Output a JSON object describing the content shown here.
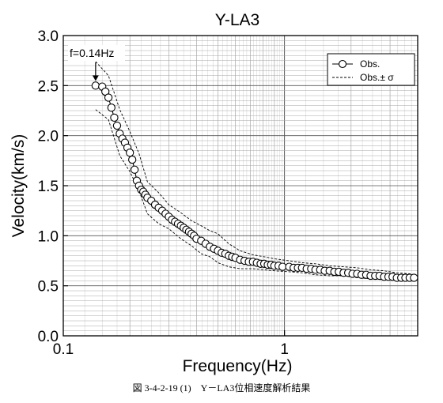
{
  "chart_data": {
    "type": "scatter",
    "title": "Y-LA3",
    "xlabel": "Frequency(Hz)",
    "ylabel": "Velocity(km/s)",
    "xscale": "log",
    "xlim": [
      0.1,
      4
    ],
    "ylim": [
      0.0,
      3.0
    ],
    "x_ticks": [
      "0.1",
      "1"
    ],
    "y_ticks": [
      "0.0",
      "0.5",
      "1.0",
      "1.5",
      "2.0",
      "2.5",
      "3.0"
    ],
    "grid": true,
    "legend_position": "top-right",
    "annotation": "f=0.14Hz",
    "annotation_x": 0.14,
    "annotation_y": 2.5,
    "series": [
      {
        "name": "Obs.",
        "style": "line-with-open-circles",
        "x": [
          0.14,
          0.15,
          0.155,
          0.16,
          0.165,
          0.17,
          0.175,
          0.18,
          0.185,
          0.19,
          0.195,
          0.2,
          0.205,
          0.21,
          0.215,
          0.22,
          0.225,
          0.23,
          0.235,
          0.24,
          0.25,
          0.26,
          0.27,
          0.28,
          0.29,
          0.3,
          0.31,
          0.32,
          0.33,
          0.34,
          0.35,
          0.36,
          0.37,
          0.38,
          0.39,
          0.4,
          0.42,
          0.44,
          0.46,
          0.48,
          0.5,
          0.52,
          0.54,
          0.56,
          0.58,
          0.6,
          0.63,
          0.66,
          0.69,
          0.72,
          0.75,
          0.78,
          0.81,
          0.84,
          0.87,
          0.9,
          0.94,
          0.98,
          1.05,
          1.1,
          1.15,
          1.2,
          1.26,
          1.32,
          1.38,
          1.45,
          1.52,
          1.6,
          1.68,
          1.76,
          1.85,
          1.94,
          2.03,
          2.13,
          2.23,
          2.34,
          2.45,
          2.57,
          2.69,
          2.82,
          2.95,
          3.08,
          3.22,
          3.37,
          3.52,
          3.68,
          3.85
        ],
        "values": [
          2.5,
          2.49,
          2.44,
          2.38,
          2.28,
          2.18,
          2.1,
          2.02,
          1.97,
          1.93,
          1.88,
          1.83,
          1.76,
          1.66,
          1.55,
          1.5,
          1.46,
          1.44,
          1.41,
          1.38,
          1.35,
          1.31,
          1.28,
          1.25,
          1.22,
          1.19,
          1.16,
          1.14,
          1.12,
          1.1,
          1.08,
          1.06,
          1.04,
          1.02,
          1.0,
          0.97,
          0.95,
          0.92,
          0.89,
          0.87,
          0.85,
          0.83,
          0.82,
          0.8,
          0.79,
          0.78,
          0.76,
          0.75,
          0.74,
          0.74,
          0.73,
          0.72,
          0.72,
          0.71,
          0.71,
          0.7,
          0.7,
          0.69,
          0.69,
          0.68,
          0.68,
          0.68,
          0.67,
          0.67,
          0.66,
          0.66,
          0.65,
          0.65,
          0.64,
          0.64,
          0.63,
          0.63,
          0.62,
          0.62,
          0.61,
          0.61,
          0.6,
          0.6,
          0.6,
          0.59,
          0.59,
          0.59,
          0.58,
          0.58,
          0.58,
          0.58,
          0.58
        ]
      },
      {
        "name": "Obs.± σ",
        "style": "dashed",
        "x": [
          0.14,
          0.16,
          0.18,
          0.2,
          0.22,
          0.24,
          0.27,
          0.3,
          0.34,
          0.38,
          0.42,
          0.46,
          0.5,
          0.56,
          0.63,
          0.72,
          0.81,
          0.9,
          1.05,
          1.2,
          1.38,
          1.6,
          1.85,
          2.13,
          2.45,
          2.82,
          3.22,
          3.68,
          3.85
        ],
        "upper": [
          2.74,
          2.6,
          2.26,
          2.04,
          1.82,
          1.54,
          1.43,
          1.31,
          1.23,
          1.15,
          1.1,
          1.05,
          1.02,
          0.92,
          0.85,
          0.81,
          0.79,
          0.77,
          0.75,
          0.73,
          0.72,
          0.7,
          0.69,
          0.68,
          0.66,
          0.65,
          0.63,
          0.62,
          0.61
        ],
        "lower": [
          2.26,
          2.16,
          1.8,
          1.64,
          1.45,
          1.22,
          1.12,
          1.07,
          0.97,
          0.9,
          0.82,
          0.79,
          0.73,
          0.69,
          0.67,
          0.67,
          0.66,
          0.65,
          0.64,
          0.63,
          0.61,
          0.6,
          0.6,
          0.58,
          0.57,
          0.56,
          0.55,
          0.55,
          0.55
        ]
      }
    ]
  },
  "caption": "図 3-4-2-19 (1)　Y－LA3位相速度解析結果"
}
